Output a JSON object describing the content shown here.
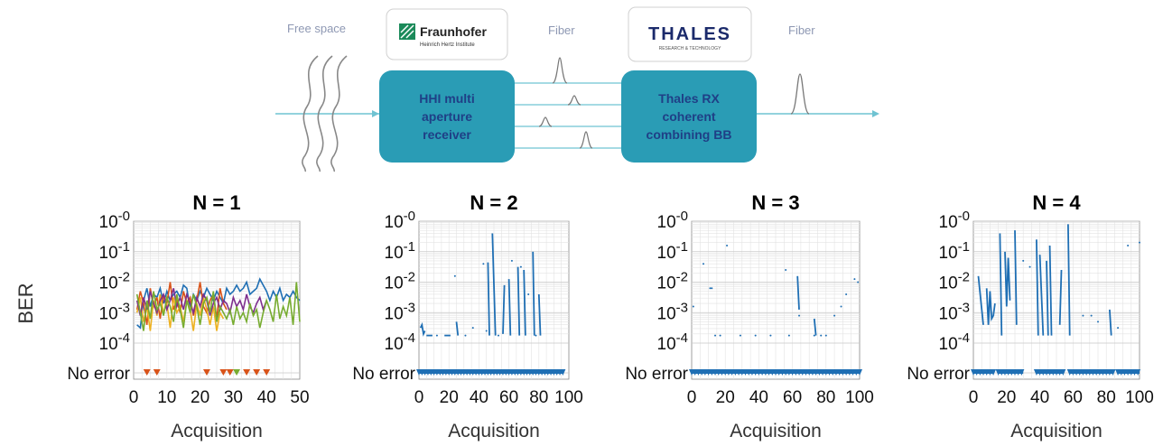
{
  "diagram": {
    "free_space_label": "Free space",
    "fiber_label_1": "Fiber",
    "fiber_label_2": "Fiber",
    "fraunhofer_logo_name": "Fraunhofer",
    "fraunhofer_logo_sub": "Heinrich Hertz Institute",
    "thales_logo_name": "THALES",
    "thales_logo_sub": "RESEARCH & TECHNOLOGY",
    "hhi_box_lines": [
      "HHI multi",
      "aperture",
      "receiver"
    ],
    "thales_box_lines": [
      "Thales RX",
      "coherent",
      "combining BB"
    ],
    "colors": {
      "box": "#2a9cb5",
      "beam": "#6fc3d2",
      "box_text": "#1f3f86"
    }
  },
  "ylabel": "BER",
  "chart_data": [
    {
      "type": "line",
      "title": "N = 1",
      "xlabel": "Acquisition",
      "ylabel": "BER",
      "xlim": [
        0,
        50
      ],
      "xticks": [
        "0",
        "10",
        "20",
        "30",
        "40",
        "50"
      ],
      "y_scale": "log",
      "ylim_exponent": [
        -4,
        0
      ],
      "yticks": [
        "10-0",
        "10-1",
        "10-2",
        "10-3",
        "10-4",
        "No error"
      ],
      "grid": true,
      "series": [
        {
          "color": "#1f6fb4",
          "x": [
            1,
            2,
            3,
            4,
            5,
            6,
            7,
            8,
            9,
            10,
            11,
            12,
            13,
            14,
            15,
            16,
            17,
            18,
            19,
            20,
            21,
            22,
            23,
            24,
            25,
            26,
            27,
            28,
            29,
            30,
            31,
            32,
            33,
            34,
            35,
            36,
            37,
            38,
            39,
            40,
            41,
            42,
            43,
            44,
            45,
            46,
            47,
            48,
            49,
            50
          ],
          "exp": [
            -3.4,
            -3.5,
            -2.6,
            -2.2,
            -2.8,
            -2.4,
            -2.5,
            -2.2,
            -2.7,
            -2.3,
            -2.6,
            -2.4,
            -2.3,
            -2.5,
            -2.1,
            -2.2,
            -2.9,
            -2.4,
            -2.6,
            -2.3,
            -2.5,
            -2.2,
            -2.4,
            -2.6,
            -2.3,
            -2.5,
            -2.7,
            -2.2,
            -2.4,
            -2.3,
            -2.1,
            -2.3,
            -2.2,
            -2.0,
            -2.4,
            -2.3,
            -2.2,
            -1.9,
            -2.1,
            -2.3,
            -2.6,
            -2.3,
            -2.5,
            -2.2,
            -2.6,
            -2.4,
            -2.5,
            -2.3,
            -2.5,
            -2.6
          ]
        },
        {
          "color": "#d95319",
          "x": [
            1,
            2,
            3,
            4,
            5,
            6,
            7,
            8,
            9,
            10,
            11,
            12,
            13,
            14,
            15,
            16,
            17,
            18,
            19,
            20,
            21,
            22,
            23,
            24,
            25,
            26,
            27,
            28
          ],
          "exp": [
            -2.9,
            -2.3,
            -2.7,
            -3.4,
            -2.2,
            -2.8,
            -2.5,
            -3.2,
            -2.4,
            -2.7,
            -2.0,
            -2.9,
            -2.6,
            -3.0,
            -2.3,
            -2.7,
            -2.5,
            -3.1,
            -2.6,
            -2.0,
            -2.8,
            -3.0,
            -2.6,
            -2.4,
            -3.2,
            -2.2,
            -2.7,
            -2.9
          ]
        },
        {
          "color": "#edb120",
          "x": [
            1,
            2,
            3,
            4,
            5,
            6,
            7,
            8,
            9,
            10,
            11,
            12,
            13,
            14,
            15,
            16,
            17,
            18,
            19,
            20,
            21,
            22,
            23,
            24,
            25,
            26,
            27
          ],
          "exp": [
            -3.0,
            -2.5,
            -3.3,
            -2.8,
            -3.6,
            -2.6,
            -3.1,
            -2.4,
            -3.0,
            -2.7,
            -3.5,
            -2.5,
            -3.0,
            -2.8,
            -3.3,
            -2.6,
            -2.9,
            -3.6,
            -2.7,
            -3.1,
            -2.5,
            -2.9,
            -3.4,
            -2.8,
            -3.6,
            -3.0,
            -3.2
          ]
        },
        {
          "color": "#7e2f8e",
          "x": [
            1,
            2,
            3,
            4,
            5,
            6,
            7,
            8,
            9,
            10,
            11,
            12,
            13,
            14,
            15,
            16,
            17,
            18,
            19,
            20,
            21,
            22,
            23,
            24,
            25,
            26,
            27,
            28,
            29,
            30,
            31,
            32,
            33,
            34,
            35,
            36,
            37,
            38,
            39,
            40
          ],
          "exp": [
            -2.6,
            -3.1,
            -2.5,
            -2.9,
            -2.3,
            -2.7,
            -3.0,
            -2.6,
            -2.4,
            -2.9,
            -2.6,
            -2.2,
            -2.8,
            -2.5,
            -2.9,
            -2.4,
            -2.7,
            -3.0,
            -2.5,
            -2.8,
            -2.4,
            -2.6,
            -3.1,
            -2.7,
            -2.5,
            -2.9,
            -2.6,
            -2.7,
            -3.0,
            -2.5,
            -2.8,
            -2.6,
            -2.9,
            -2.4,
            -2.8,
            -3.0,
            -2.7,
            -2.5,
            -2.9,
            -2.6
          ]
        },
        {
          "color": "#77ac30",
          "x": [
            1,
            2,
            3,
            4,
            5,
            6,
            7,
            8,
            9,
            10,
            11,
            12,
            13,
            14,
            15,
            16,
            17,
            18,
            19,
            20,
            21,
            22,
            23,
            24,
            25,
            26,
            27,
            28,
            29,
            30,
            31,
            32,
            33,
            34,
            35,
            36,
            37,
            38,
            39,
            40,
            41,
            42,
            43,
            44,
            45,
            46,
            47,
            48,
            49,
            50
          ],
          "exp": [
            -2.4,
            -3.0,
            -3.6,
            -2.6,
            -3.2,
            -2.3,
            -2.9,
            -2.7,
            -3.1,
            -2.5,
            -2.8,
            -3.3,
            -2.4,
            -2.9,
            -3.5,
            -2.6,
            -3.0,
            -2.4,
            -2.8,
            -3.4,
            -2.7,
            -2.5,
            -3.0,
            -2.3,
            -3.3,
            -2.8,
            -3.0,
            -3.2,
            -2.9,
            -3.4,
            -2.8,
            -3.2,
            -3.0,
            -3.3,
            -2.7,
            -3.1,
            -2.9,
            -3.5,
            -3.0,
            -2.6,
            -2.9,
            -3.3,
            -2.4,
            -3.2,
            -2.8,
            -3.1,
            -2.5,
            -3.4,
            -2.0,
            -3.3
          ]
        }
      ],
      "no_error_markers": [
        {
          "x": 4,
          "color": "#d95319"
        },
        {
          "x": 7,
          "color": "#d95319"
        },
        {
          "x": 22,
          "color": "#d95319"
        },
        {
          "x": 27,
          "color": "#d95319"
        },
        {
          "x": 29,
          "color": "#d95319"
        },
        {
          "x": 31,
          "color": "#77ac30"
        },
        {
          "x": 34,
          "color": "#d95319"
        },
        {
          "x": 37,
          "color": "#d95319"
        },
        {
          "x": 40,
          "color": "#d95319"
        }
      ]
    },
    {
      "type": "line",
      "title": "N = 2",
      "xlabel": "Acquisition",
      "ylabel": "BER",
      "xlim": [
        0,
        100
      ],
      "xticks": [
        "0",
        "20",
        "40",
        "60",
        "80",
        "100"
      ],
      "y_scale": "log",
      "ylim_exponent": [
        -4,
        0
      ],
      "yticks": [
        "10-0",
        "10-1",
        "10-2",
        "10-3",
        "10-4",
        "No error"
      ],
      "grid": true,
      "color": "#1f6fb4",
      "segments": [
        [
          [
            1,
            -3.5
          ],
          [
            2,
            -3.4
          ],
          [
            3,
            -3.7
          ],
          [
            4,
            -3.6
          ]
        ],
        [
          [
            5,
            -3.75
          ],
          [
            9,
            -3.75
          ]
        ],
        [
          [
            17,
            -3.75
          ],
          [
            21,
            -3.75
          ]
        ],
        [
          [
            25,
            -3.3
          ],
          [
            26,
            -3.75
          ]
        ],
        [
          [
            46,
            -1.35
          ],
          [
            47,
            -3.75
          ]
        ],
        [
          [
            49,
            -0.4
          ],
          [
            51,
            -3.75
          ]
        ],
        [
          [
            56,
            -3.7
          ],
          [
            57,
            -2.1
          ]
        ],
        [
          [
            60,
            -1.9
          ],
          [
            61,
            -3.75
          ]
        ],
        [
          [
            66,
            -1.5
          ],
          [
            67,
            -3.75
          ]
        ],
        [
          [
            70,
            -1.6
          ],
          [
            71,
            -3.75
          ]
        ],
        [
          [
            76,
            -1.0
          ],
          [
            77,
            -3.75
          ]
        ],
        [
          [
            80,
            -2.4
          ],
          [
            81,
            -3.75
          ]
        ]
      ],
      "points": [
        [
          12,
          -3.75
        ],
        [
          24,
          -1.8
        ],
        [
          31,
          -3.75
        ],
        [
          36,
          -3.5
        ],
        [
          43,
          -1.4
        ],
        [
          45,
          -3.6
        ],
        [
          53,
          -3.75
        ],
        [
          62,
          -1.3
        ],
        [
          68,
          -1.5
        ],
        [
          73,
          -2.4
        ],
        [
          78,
          -3.75
        ]
      ],
      "no_error_range": [
        0,
        96
      ]
    },
    {
      "type": "line",
      "title": "N = 3",
      "xlabel": "Acquisition",
      "ylabel": "BER",
      "xlim": [
        0,
        100
      ],
      "xticks": [
        "0",
        "20",
        "40",
        "60",
        "80",
        "100"
      ],
      "y_scale": "log",
      "ylim_exponent": [
        -4,
        0
      ],
      "yticks": [
        "10-0",
        "10-1",
        "10-2",
        "10-3",
        "10-4",
        "No error"
      ],
      "grid": true,
      "color": "#1f6fb4",
      "segments": [
        [
          [
            63,
            -1.8
          ],
          [
            64,
            -2.9
          ]
        ],
        [
          [
            73,
            -3.2
          ],
          [
            74,
            -3.75
          ]
        ]
      ],
      "points": [
        [
          1,
          -2.8
        ],
        [
          7,
          -1.4
        ],
        [
          11,
          -2.2
        ],
        [
          12,
          -2.2
        ],
        [
          14,
          -3.75
        ],
        [
          17,
          -3.75
        ],
        [
          21,
          -0.8
        ],
        [
          29,
          -3.75
        ],
        [
          38,
          -3.75
        ],
        [
          47,
          -3.75
        ],
        [
          56,
          -1.6
        ],
        [
          58,
          -3.75
        ],
        [
          64,
          -3.1
        ],
        [
          73,
          -3.75
        ],
        [
          77,
          -3.75
        ],
        [
          80,
          -3.75
        ],
        [
          85,
          -3.1
        ],
        [
          89,
          -2.8
        ],
        [
          92,
          -2.4
        ],
        [
          97,
          -1.9
        ],
        [
          99,
          -2.0
        ]
      ],
      "no_error_range": [
        0,
        100
      ]
    },
    {
      "type": "line",
      "title": "N = 4",
      "xlabel": "Acquisition",
      "ylabel": "BER",
      "xlim": [
        0,
        100
      ],
      "xticks": [
        "0",
        "20",
        "40",
        "60",
        "80",
        "100"
      ],
      "y_scale": "log",
      "ylim_exponent": [
        -4,
        0
      ],
      "yticks": [
        "10-0",
        "10-1",
        "10-2",
        "10-3",
        "10-4",
        "No error"
      ],
      "grid": true,
      "color": "#1f6fb4",
      "segments": [
        [
          [
            3,
            -1.8
          ],
          [
            6,
            -3.4
          ]
        ],
        [
          [
            8,
            -2.2
          ],
          [
            9,
            -3.4
          ],
          [
            10,
            -2.3
          ],
          [
            11,
            -3.2
          ],
          [
            12,
            -3.1
          ],
          [
            13,
            -2.7
          ]
        ],
        [
          [
            16,
            -0.4
          ],
          [
            17,
            -3.75
          ]
        ],
        [
          [
            19,
            -1.0
          ],
          [
            20,
            -2.8
          ],
          [
            21,
            -1.2
          ],
          [
            22,
            -2.6
          ]
        ],
        [
          [
            25,
            -0.3
          ],
          [
            26,
            -3.4
          ]
        ],
        [
          [
            38,
            -0.6
          ],
          [
            39,
            -3.75
          ]
        ],
        [
          [
            40,
            -1.1
          ],
          [
            42,
            -3.75
          ]
        ],
        [
          [
            44,
            -1.3
          ],
          [
            45,
            -3.75
          ]
        ],
        [
          [
            46,
            -0.8
          ],
          [
            47,
            -3.75
          ]
        ],
        [
          [
            52,
            -3.4
          ],
          [
            53,
            -1.6
          ]
        ],
        [
          [
            57,
            -0.1
          ],
          [
            58,
            -3.75
          ]
        ],
        [
          [
            82,
            -2.9
          ],
          [
            83,
            -3.75
          ]
        ]
      ],
      "points": [
        [
          30,
          -1.3
        ],
        [
          34,
          -1.5
        ],
        [
          66,
          -3.1
        ],
        [
          71,
          -3.1
        ],
        [
          75,
          -3.3
        ],
        [
          87,
          -3.5
        ],
        [
          93,
          -0.8
        ],
        [
          100,
          -0.7
        ]
      ],
      "no_error_ranges": [
        [
          0,
          12
        ],
        [
          15,
          30
        ],
        [
          38,
          54
        ],
        [
          58,
          84
        ],
        [
          87,
          100
        ]
      ]
    }
  ]
}
